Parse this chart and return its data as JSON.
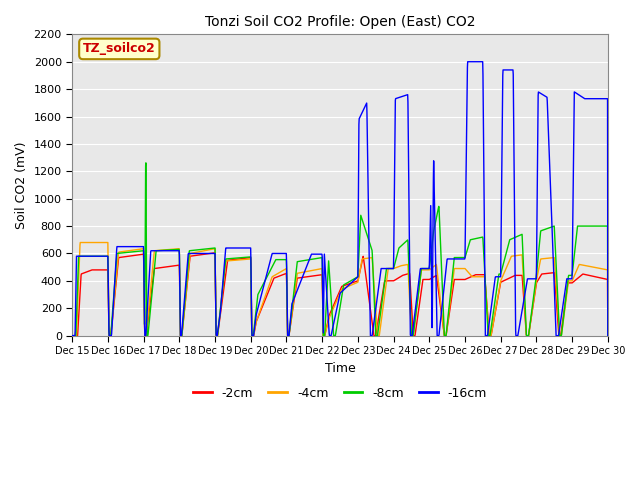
{
  "title": "Tonzi Soil CO2 Profile: Open (East) CO2",
  "xlabel": "Time",
  "ylabel": "Soil CO2 (mV)",
  "ylim": [
    0,
    2200
  ],
  "xlim": [
    0,
    15
  ],
  "fig_bg": "#ffffff",
  "plot_bg": "#e8e8e8",
  "legend_label": "TZ_soilco2",
  "series_labels": [
    "-2cm",
    "-4cm",
    "-8cm",
    "-16cm"
  ],
  "series_colors": [
    "#ff0000",
    "#ffa500",
    "#00cc00",
    "#0000ff"
  ],
  "xtick_labels": [
    "Dec 15",
    "Dec 16",
    "Dec 17",
    "Dec 18",
    "Dec 19",
    "Dec 20",
    "Dec 21",
    "Dec 22",
    "Dec 23",
    "Dec 24",
    "Dec 25",
    "Dec 26",
    "Dec 27",
    "Dec 28",
    "Dec 29",
    "Dec 30"
  ],
  "xtick_positions": [
    0,
    1,
    2,
    3,
    4,
    5,
    6,
    7,
    8,
    9,
    10,
    11,
    12,
    13,
    14,
    15
  ],
  "ytick_positions": [
    0,
    200,
    400,
    600,
    800,
    1000,
    1200,
    1400,
    1600,
    1800,
    2000,
    2200
  ],
  "grid_color": "#ffffff",
  "title_fontsize": 10,
  "axis_fontsize": 9,
  "tick_fontsize": 7,
  "lw": 1.0,
  "annotation_text": "TZ_soilco2",
  "annotation_color": "#cc0000",
  "annotation_bg": "#ffffcc",
  "annotation_edge": "#aa8800"
}
